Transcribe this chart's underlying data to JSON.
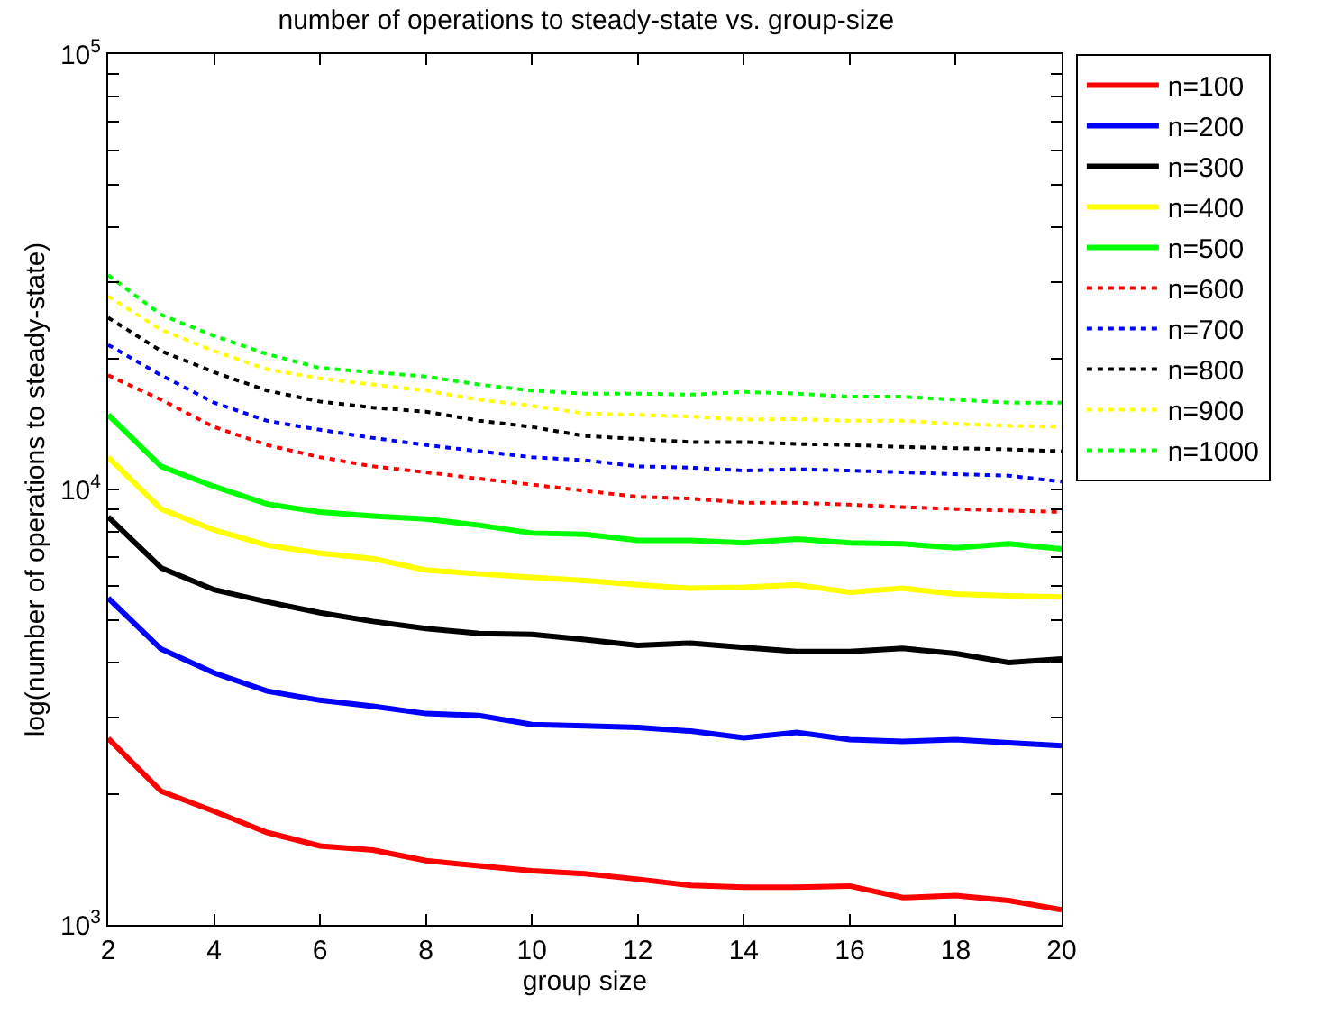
{
  "chart_data": {
    "type": "line",
    "title": "number of operations to steady-state vs. group-size",
    "xlabel": "group size",
    "ylabel": "log(number of operations to steady-state)",
    "x": [
      2,
      3,
      4,
      5,
      6,
      7,
      8,
      9,
      10,
      11,
      12,
      13,
      14,
      15,
      16,
      17,
      18,
      19,
      20
    ],
    "xlim": [
      2,
      20
    ],
    "xticks": [
      2,
      4,
      6,
      8,
      10,
      12,
      14,
      16,
      18,
      20
    ],
    "log": "y",
    "ylim": [
      1000,
      100000
    ],
    "yticks": [
      {
        "value": 1000,
        "label": "10$^{3}$"
      },
      {
        "value": 2000,
        "label": null
      },
      {
        "value": 3000,
        "label": null
      },
      {
        "value": 4000,
        "label": null
      },
      {
        "value": 5000,
        "label": null
      },
      {
        "value": 6000,
        "label": null
      },
      {
        "value": 7000,
        "label": null
      },
      {
        "value": 8000,
        "label": null
      },
      {
        "value": 9000,
        "label": null
      },
      {
        "value": 10000,
        "label": "10$^{4}$"
      },
      {
        "value": 20000,
        "label": null
      },
      {
        "value": 30000,
        "label": null
      },
      {
        "value": 40000,
        "label": null
      },
      {
        "value": 50000,
        "label": null
      },
      {
        "value": 60000,
        "label": null
      },
      {
        "value": 70000,
        "label": null
      },
      {
        "value": 80000,
        "label": null
      },
      {
        "value": 90000,
        "label": null
      },
      {
        "value": 100000,
        "label": "10$^{5}$"
      }
    ],
    "legend": "top right",
    "marker": "none",
    "series": [
      {
        "name": "n=100",
        "color": "#ff0000",
        "line_style": "solid",
        "values": [
          2680,
          2027,
          1823,
          1630,
          1518,
          1485,
          1405,
          1366,
          1331,
          1310,
          1273,
          1232,
          1220,
          1220,
          1228,
          1155,
          1167,
          1137,
          1083
        ]
      },
      {
        "name": "n=200",
        "color": "#0000ff",
        "line_style": "solid",
        "values": [
          5630,
          4300,
          3790,
          3443,
          3280,
          3177,
          3057,
          3027,
          2886,
          2866,
          2840,
          2786,
          2690,
          2768,
          2663,
          2637,
          2663,
          2620,
          2578
        ]
      },
      {
        "name": "n=300",
        "color": "#000000",
        "line_style": "solid",
        "values": [
          8650,
          6605,
          5885,
          5520,
          5210,
          4977,
          4795,
          4670,
          4645,
          4520,
          4383,
          4436,
          4336,
          4246,
          4246,
          4315,
          4200,
          4006,
          4083
        ]
      },
      {
        "name": "n=400",
        "color": "#ffff00",
        "line_style": "solid",
        "values": [
          11860,
          9020,
          8070,
          7445,
          7140,
          6935,
          6530,
          6400,
          6280,
          6180,
          6040,
          5930,
          5960,
          6040,
          5810,
          5930,
          5755,
          5700,
          5665
        ]
      },
      {
        "name": "n=500",
        "color": "#00ff00",
        "line_style": "solid",
        "values": [
          14840,
          11300,
          10160,
          9260,
          8880,
          8690,
          8550,
          8280,
          7940,
          7890,
          7640,
          7640,
          7535,
          7690,
          7535,
          7500,
          7345,
          7500,
          7300
        ]
      },
      {
        "name": "n=600",
        "color": "#ff0000",
        "line_style": "dotted",
        "values": [
          18290,
          16080,
          13920,
          12650,
          11860,
          11300,
          10950,
          10590,
          10260,
          9930,
          9620,
          9530,
          9320,
          9320,
          9230,
          9110,
          9020,
          8940,
          8880
        ]
      },
      {
        "name": "n=700",
        "color": "#0000ff",
        "line_style": "dotted",
        "values": [
          21480,
          18290,
          15830,
          14380,
          13710,
          13130,
          12650,
          12240,
          11860,
          11670,
          11300,
          11220,
          11050,
          11130,
          11050,
          10950,
          10840,
          10760,
          10420
        ]
      },
      {
        "name": "n=800",
        "color": "#000000",
        "line_style": "dotted",
        "values": [
          24810,
          20800,
          18590,
          16870,
          15920,
          15420,
          15090,
          14390,
          13920,
          13270,
          13060,
          12850,
          12850,
          12720,
          12650,
          12520,
          12440,
          12360,
          12240
        ]
      },
      {
        "name": "n=900",
        "color": "#ffff00",
        "line_style": "dotted",
        "values": [
          27780,
          23270,
          20800,
          18880,
          17990,
          17420,
          16870,
          16080,
          15570,
          14940,
          14840,
          14710,
          14470,
          14510,
          14380,
          14380,
          14150,
          14010,
          13920
        ]
      },
      {
        "name": "n=1000",
        "color": "#00ff00",
        "line_style": "dotted",
        "values": [
          31070,
          25200,
          22530,
          20470,
          19010,
          18590,
          18170,
          17420,
          16870,
          16600,
          16600,
          16510,
          16750,
          16600,
          16330,
          16330,
          16080,
          15830,
          15830
        ]
      }
    ]
  }
}
